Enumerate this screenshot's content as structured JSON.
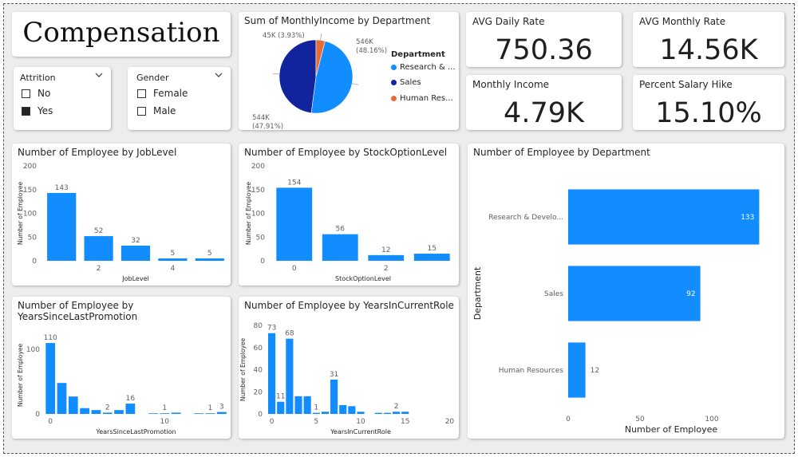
{
  "banner": {
    "title": "Compensation"
  },
  "slicers": {
    "attrition": {
      "title": "Attrition",
      "options": [
        {
          "label": "No",
          "checked": false
        },
        {
          "label": "Yes",
          "checked": true
        }
      ]
    },
    "gender": {
      "title": "Gender",
      "options": [
        {
          "label": "Female",
          "checked": false
        },
        {
          "label": "Male",
          "checked": false
        }
      ]
    }
  },
  "kpis": {
    "avg_daily_rate": {
      "title": "AVG Daily Rate",
      "value": "750.36"
    },
    "avg_monthly_rate": {
      "title": "AVG Monthly Rate",
      "value": "14.56K"
    },
    "monthly_income": {
      "title": "Monthly Income",
      "value": "4.79K"
    },
    "salary_hike": {
      "title": "Percent Salary Hike",
      "value": "15.10%"
    }
  },
  "colors": {
    "bar": "#118DFF",
    "research": "#118DFF",
    "sales": "#12239E",
    "hr": "#E66C37"
  },
  "chart_data": [
    {
      "id": "pie",
      "type": "pie",
      "title": "Sum of MonthlyIncome by Department",
      "legend_title": "Department",
      "legend_labels": [
        "Research & ...",
        "Sales",
        "Human Res..."
      ],
      "slices": [
        {
          "name": "Research & Development",
          "value": 546,
          "label": "546K",
          "pct": "(48.16%)"
        },
        {
          "name": "Sales",
          "value": 544,
          "label": "544K",
          "pct": "(47.91%)"
        },
        {
          "name": "Human Resources",
          "value": 45,
          "label": "45K (3.93%)",
          "pct": ""
        }
      ]
    },
    {
      "id": "joblevel",
      "type": "bar",
      "title": "Number of Employee by JobLevel",
      "xlabel": "JobLevel",
      "ylabel": "Number of Employee",
      "ylim": [
        0,
        200
      ],
      "yticks": [
        0,
        50,
        100,
        150,
        200
      ],
      "x": [
        1,
        2,
        3,
        4,
        5
      ],
      "xtick_labels": [
        "",
        "2",
        "",
        "4",
        ""
      ],
      "values": [
        143,
        52,
        32,
        5,
        5
      ]
    },
    {
      "id": "stock",
      "type": "bar",
      "title": "Number of Employee by StockOptionLevel",
      "xlabel": "StockOptionLevel",
      "ylabel": "Number of Employee",
      "ylim": [
        0,
        200
      ],
      "yticks": [
        0,
        50,
        100,
        150,
        200
      ],
      "x": [
        0,
        1,
        2,
        3
      ],
      "xtick_labels": [
        "0",
        "",
        "2",
        ""
      ],
      "values": [
        154,
        56,
        12,
        15
      ]
    },
    {
      "id": "promotion",
      "type": "bar",
      "title": "Number of Employee by YearsSinceLastPromotion",
      "title_lines": [
        "Number of Employee by",
        "YearsSinceLastPromotion"
      ],
      "xlabel": "YearsSinceLastPromotion",
      "ylabel": "Number of Employee",
      "ylim": [
        0,
        120
      ],
      "yticks": [
        0,
        100
      ],
      "xlim": [
        0,
        15
      ],
      "xticks": [
        0,
        10
      ],
      "x": [
        0,
        1,
        2,
        3,
        4,
        5,
        6,
        7,
        9,
        10,
        11,
        13,
        14,
        15
      ],
      "values": [
        110,
        48,
        27,
        9,
        6,
        2,
        6,
        16,
        1,
        1,
        2,
        1,
        1,
        3
      ],
      "value_labels": {
        "0": "110",
        "5": "2",
        "7": "16",
        "10": "1",
        "14": "1",
        "15": "3"
      }
    },
    {
      "id": "role",
      "type": "bar",
      "title": "Number of Employee by YearsInCurrentRole",
      "xlabel": "YearsInCurrentRole",
      "ylabel": "Number of Employee",
      "ylim": [
        0,
        80
      ],
      "yticks": [
        0,
        20,
        40,
        60,
        80
      ],
      "xlim": [
        0,
        20
      ],
      "xticks": [
        0,
        5,
        10,
        15,
        20
      ],
      "x": [
        0,
        1,
        2,
        3,
        4,
        5,
        6,
        7,
        8,
        9,
        10,
        11,
        12,
        13,
        14,
        15
      ],
      "values": [
        73,
        11,
        68,
        16,
        16,
        1,
        2,
        31,
        8,
        7,
        2,
        0,
        1,
        1,
        2,
        2
      ],
      "value_labels": {
        "0": "73",
        "1": "11",
        "2": "68",
        "5": "1",
        "7": "31",
        "14": "2"
      }
    },
    {
      "id": "dept",
      "type": "bar",
      "orientation": "horizontal",
      "title": "Number of Employee by Department",
      "xlabel": "Number of Employee",
      "ylabel": "Department",
      "xlim": [
        0,
        140
      ],
      "xticks": [
        0,
        50,
        100
      ],
      "categories": [
        "Research & Develo...",
        "Sales",
        "Human Resources"
      ],
      "values": [
        133,
        92,
        12
      ]
    }
  ]
}
